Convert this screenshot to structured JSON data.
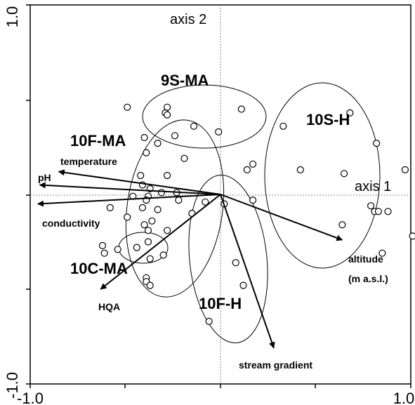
{
  "chart_data": {
    "type": "scatter",
    "title": "",
    "xlabel": "axis 1",
    "ylabel": "axis 2",
    "xlim": [
      -1.0,
      1.0
    ],
    "ylim": [
      -1.0,
      1.0
    ],
    "x_tick_labels": [
      "-1.0",
      "1.0"
    ],
    "y_tick_labels": [
      "1.0",
      "-1.0"
    ],
    "grid": false,
    "points": [
      [
        -0.49,
        0.46
      ],
      [
        -0.28,
        0.46
      ],
      [
        -0.29,
        0.43
      ],
      [
        -0.28,
        0.42
      ],
      [
        0.11,
        0.45
      ],
      [
        -0.14,
        0.36
      ],
      [
        -0.01,
        0.33
      ],
      [
        0.33,
        0.36
      ],
      [
        -0.4,
        0.3
      ],
      [
        -0.24,
        0.31
      ],
      [
        -0.33,
        0.27
      ],
      [
        -0.39,
        0.22
      ],
      [
        -0.19,
        0.19
      ],
      [
        0.17,
        0.16
      ],
      [
        0.14,
        0.13
      ],
      [
        -0.42,
        0.1
      ],
      [
        -0.28,
        0.1
      ],
      [
        -0.41,
        0.05
      ],
      [
        -0.37,
        0.03
      ],
      [
        -0.31,
        0.01
      ],
      [
        0.42,
        0.13
      ],
      [
        -0.23,
        0.01
      ],
      [
        -0.46,
        -0.01
      ],
      [
        -0.38,
        -0.01
      ],
      [
        -0.39,
        -0.03
      ],
      [
        -0.22,
        -0.03
      ],
      [
        -0.08,
        -0.04
      ],
      [
        -0.58,
        -0.07
      ],
      [
        -0.41,
        -0.07
      ],
      [
        -0.33,
        -0.08
      ],
      [
        -0.49,
        -0.12
      ],
      [
        -0.15,
        -0.1
      ],
      [
        0.02,
        -0.05
      ],
      [
        0.17,
        -0.03
      ],
      [
        -0.36,
        -0.14
      ],
      [
        -0.4,
        -0.16
      ],
      [
        -0.38,
        -0.19
      ],
      [
        -0.28,
        -0.19
      ],
      [
        -0.38,
        -0.25
      ],
      [
        -0.44,
        -0.28
      ],
      [
        -0.54,
        -0.29
      ],
      [
        -0.62,
        -0.27
      ],
      [
        -0.61,
        -0.31
      ],
      [
        -0.37,
        -0.34
      ],
      [
        -0.3,
        -0.32
      ],
      [
        -0.39,
        -0.44
      ],
      [
        -0.39,
        -0.46
      ],
      [
        -0.37,
        -0.48
      ],
      [
        0.08,
        -0.36
      ],
      [
        0.12,
        -0.48
      ],
      [
        -0.06,
        -0.67
      ],
      [
        0.68,
        0.43
      ],
      [
        0.82,
        0.27
      ],
      [
        0.65,
        0.11
      ],
      [
        0.97,
        0.13
      ],
      [
        1.01,
        -0.22
      ],
      [
        0.79,
        -0.06
      ],
      [
        0.81,
        -0.09
      ],
      [
        0.83,
        -0.09
      ],
      [
        0.88,
        -0.09
      ],
      [
        0.64,
        -0.16
      ],
      [
        0.85,
        -0.31
      ]
    ],
    "groups": [
      {
        "label": "9S-MA"
      },
      {
        "label": "10F-MA"
      },
      {
        "label": "10S-H"
      },
      {
        "label": "10C-MA"
      },
      {
        "label": "10F-H"
      }
    ],
    "vectors": [
      {
        "label": "temperature",
        "x": -0.85,
        "y": 0.12
      },
      {
        "label": "pH",
        "x": -0.95,
        "y": 0.05
      },
      {
        "label": "conductivity",
        "x": -0.96,
        "y": -0.05
      },
      {
        "label": "altitude",
        "label2": "(m a.s.l.)",
        "x": 0.64,
        "y": -0.24
      },
      {
        "label": "HQA",
        "x": -0.63,
        "y": -0.5
      },
      {
        "label": "stream gradient",
        "x": 0.28,
        "y": -0.81
      }
    ]
  }
}
